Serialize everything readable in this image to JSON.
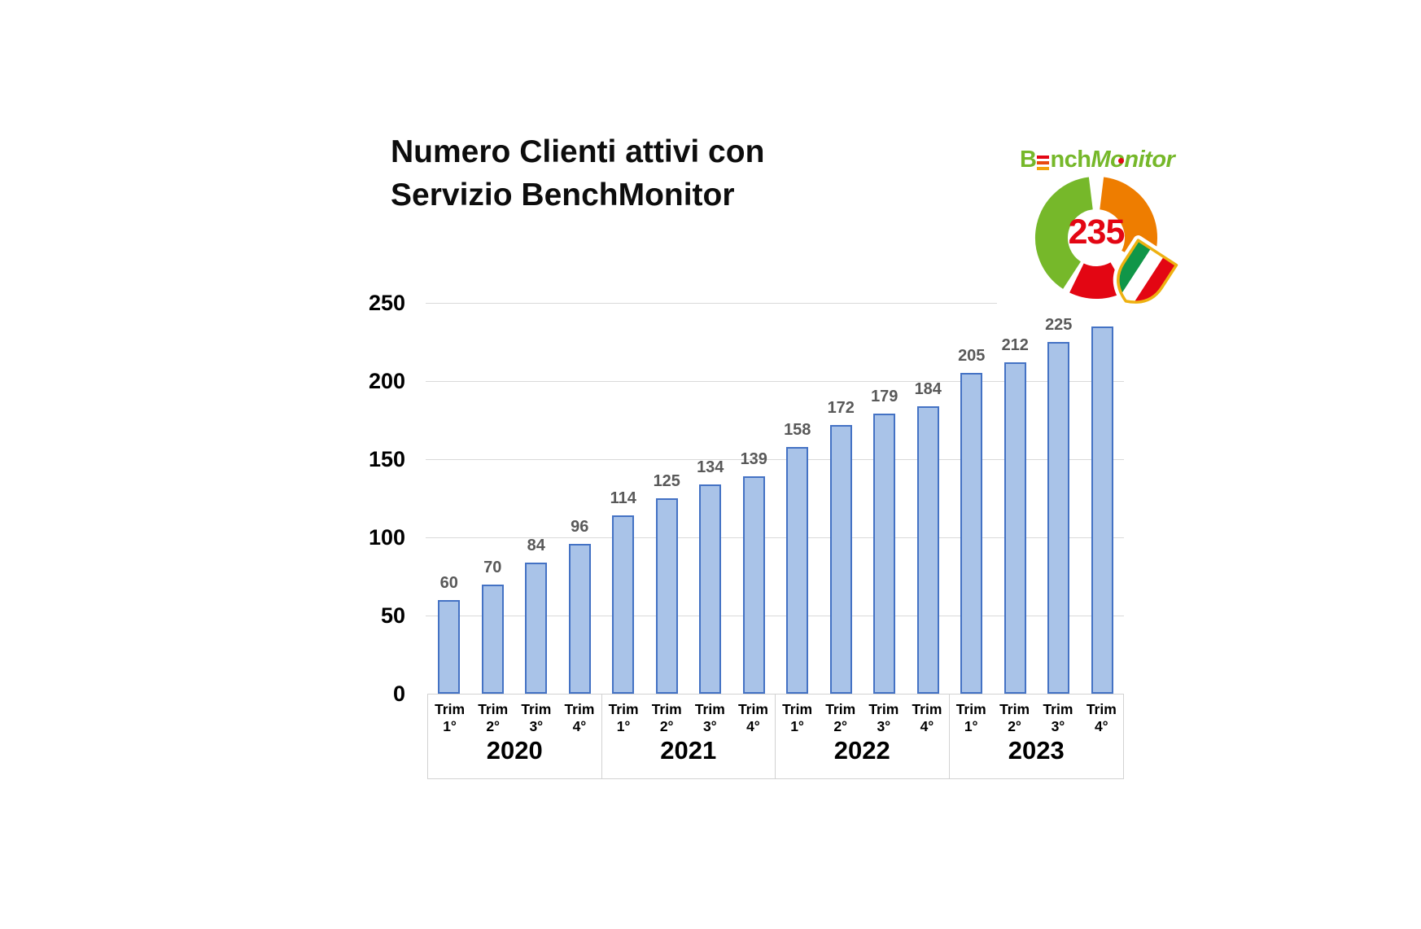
{
  "title": {
    "line1": "Numero Clienti attivi con",
    "line2": "Servizio BenchMonitor"
  },
  "logo": {
    "wordmark": {
      "b": "B",
      "nch": "nch",
      "monitor": "Monitor"
    },
    "center_value": "235"
  },
  "colors": {
    "bar_fill": "#a9c3e8",
    "bar_border": "#4472c4",
    "gridline": "#d9d9d9",
    "axis_box_border": "#d2d2d2",
    "data_label": "#595959",
    "logo_green": "#76b82a",
    "logo_green_dark": "#109648",
    "logo_orange": "#ee7d00",
    "logo_red": "#e30613",
    "logo_gold": "#eeb111",
    "e_bar_top": "#e30613",
    "e_bar_mid": "#e8490f",
    "e_bar_bottom": "#f2a30b"
  },
  "chart_data": {
    "type": "bar",
    "title": "Numero Clienti attivi con Servizio BenchMonitor",
    "xlabel": "",
    "ylabel": "",
    "ylim": [
      0,
      250
    ],
    "yticks": [
      0,
      50,
      100,
      150,
      200,
      250
    ],
    "grid": true,
    "legend": false,
    "groups": [
      {
        "year": "2020",
        "quarters": [
          "Trim 1°",
          "Trim 2°",
          "Trim 3°",
          "Trim 4°"
        ],
        "values": [
          60,
          70,
          84,
          96
        ],
        "labels": [
          "60",
          "70",
          "84",
          "96"
        ]
      },
      {
        "year": "2021",
        "quarters": [
          "Trim 1°",
          "Trim 2°",
          "Trim 3°",
          "Trim 4°"
        ],
        "values": [
          114,
          125,
          134,
          139
        ],
        "labels": [
          "114",
          "125",
          "134",
          "139"
        ]
      },
      {
        "year": "2022",
        "quarters": [
          "Trim 1°",
          "Trim 2°",
          "Trim 3°",
          "Trim 4°"
        ],
        "values": [
          158,
          172,
          179,
          184
        ],
        "labels": [
          "158",
          "172",
          "179",
          "184"
        ]
      },
      {
        "year": "2023",
        "quarters": [
          "Trim 1°",
          "Trim 2°",
          "Trim 3°",
          "Trim 4°"
        ],
        "values": [
          205,
          212,
          225,
          235
        ],
        "labels": [
          "205",
          "212",
          "225",
          ""
        ]
      }
    ]
  }
}
